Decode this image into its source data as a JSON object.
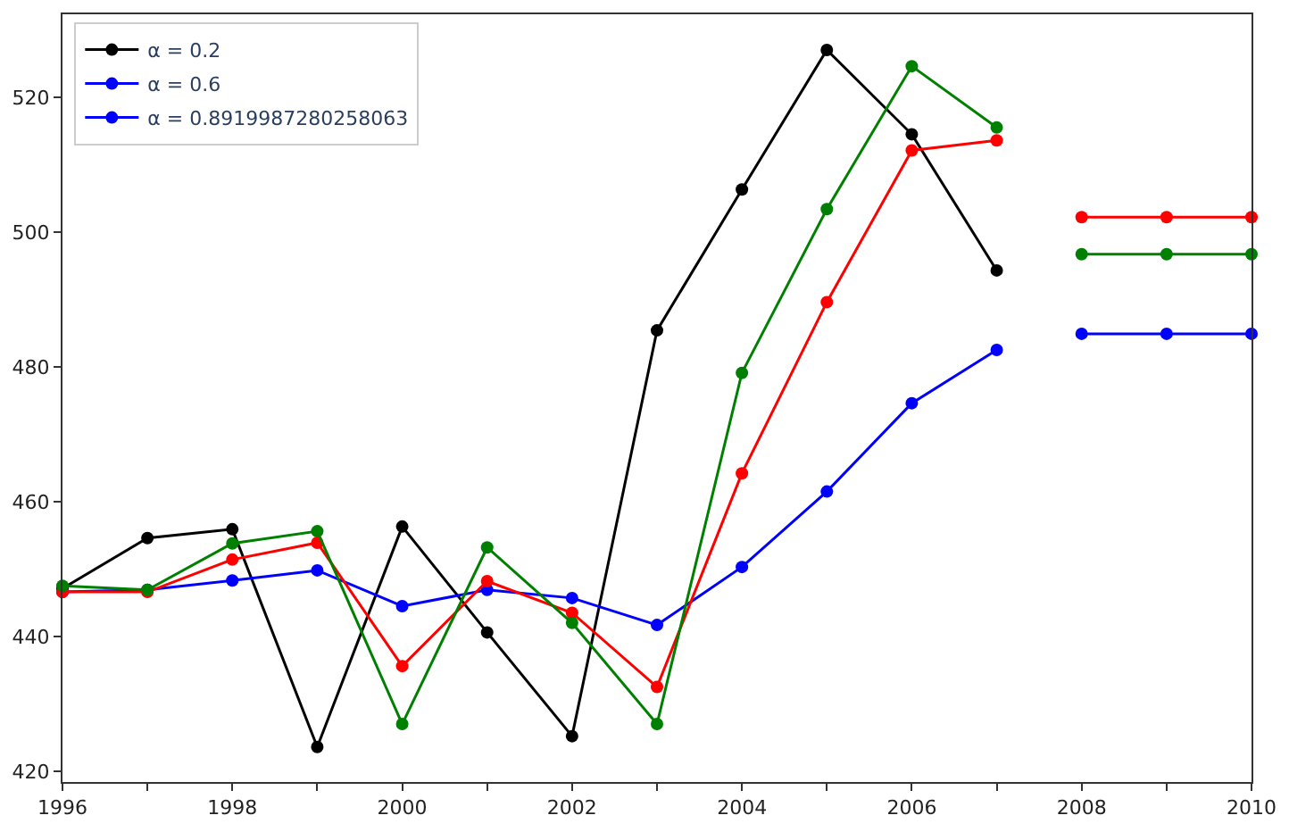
{
  "chart_data": {
    "type": "line",
    "marker": "circle",
    "line_style": "solid",
    "legend": "top left",
    "xlim": [
      1996,
      2010
    ],
    "ylim": [
      418.4,
      532.3
    ],
    "xticks": [
      1996,
      {
        "value": 1997,
        "label": null
      },
      1998,
      {
        "value": 1999,
        "label": null
      },
      2000,
      {
        "value": 2001,
        "label": null
      },
      2002,
      {
        "value": 2003,
        "label": null
      },
      2004,
      {
        "value": 2005,
        "label": null
      },
      2006,
      {
        "value": 2007,
        "label": null
      },
      2008,
      {
        "value": 2009,
        "label": null
      },
      2010
    ],
    "yticks": [
      420,
      440,
      460,
      480,
      500,
      520
    ],
    "series": [
      {
        "name": "α = 0.2",
        "color": "#000000",
        "x": [
          1996,
          1997,
          1998,
          1999,
          2000,
          2001,
          2002,
          2003,
          2004,
          2005,
          2006,
          2007
        ],
        "values": [
          447.1,
          454.6,
          455.9,
          423.6,
          456.3,
          440.6,
          425.2,
          485.4,
          506.3,
          527.0,
          514.5,
          494.3
        ]
      },
      {
        "name": "α = 0.6",
        "color": "#0000ff",
        "x": [
          2008,
          2009,
          2010
        ],
        "values": [
          484.9,
          484.9,
          484.9
        ]
      },
      {
        "name": "α = 0.8919987280258063",
        "color": "#0000ff",
        "x": [
          1996,
          1997,
          1998,
          1999,
          2000,
          2001,
          2002,
          2003,
          2004,
          2005,
          2006,
          2007
        ],
        "values": [
          446.6,
          446.9,
          448.3,
          449.8,
          444.5,
          446.9,
          445.7,
          441.7,
          450.3,
          461.5,
          474.6,
          482.5
        ]
      },
      {
        "color": "#ff0000",
        "x": [
          1996,
          1997,
          1998,
          1999,
          2000,
          2001,
          2002,
          2003,
          2004,
          2005,
          2006,
          2007
        ],
        "values": [
          446.6,
          446.6,
          451.4,
          453.9,
          435.6,
          448.2,
          443.5,
          432.5,
          464.2,
          489.6,
          512.1,
          513.6
        ]
      },
      {
        "color": "#ff0000",
        "x": [
          2008,
          2009,
          2010
        ],
        "values": [
          502.2,
          502.2,
          502.2
        ]
      },
      {
        "color": "#008000",
        "x": [
          1996,
          1997,
          1998,
          1999,
          2000,
          2001,
          2002,
          2003,
          2004,
          2005,
          2006,
          2007
        ],
        "values": [
          447.5,
          446.9,
          453.8,
          455.6,
          427.0,
          453.2,
          442.0,
          427.0,
          479.1,
          503.4,
          524.6,
          515.5
        ]
      },
      {
        "color": "#008000",
        "x": [
          2008,
          2009,
          2010
        ],
        "values": [
          496.7,
          496.7,
          496.7
        ]
      }
    ]
  }
}
